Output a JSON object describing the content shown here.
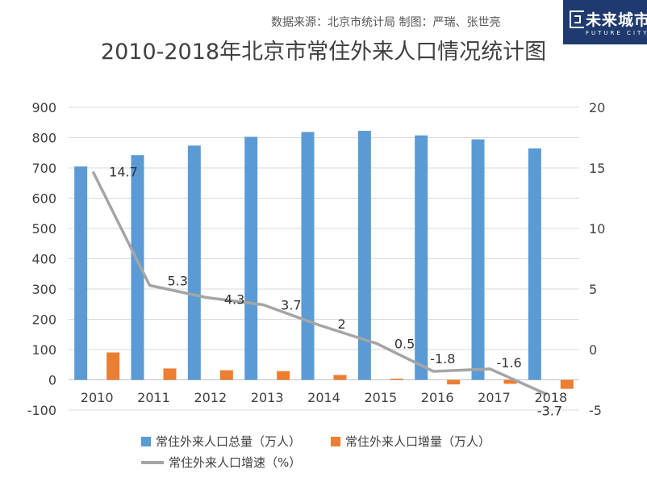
{
  "header": {
    "source_text": "数据来源：北京市统计局    制图：严瑞、张世亮",
    "title": "2010-2018年北京市常住外来人口情况统计图"
  },
  "logo": {
    "name": "未来城市",
    "english": "FUTURE CITY",
    "background": "#1f3a6e"
  },
  "chart_data": {
    "type": "bar",
    "title": "2010-2018年北京市常住外来人口情况统计图",
    "categories": [
      "2010",
      "2011",
      "2012",
      "2013",
      "2014",
      "2015",
      "2016",
      "2017",
      "2018"
    ],
    "series": [
      {
        "name": "常住外来人口总量（万人）",
        "type": "bar",
        "axis": "left",
        "color": "#5b9bd5",
        "values": [
          704.7,
          742.2,
          773.8,
          802.7,
          818.7,
          822.6,
          807.5,
          794.3,
          764.6
        ]
      },
      {
        "name": "常住外来人口增量（万人）",
        "type": "bar",
        "axis": "left",
        "color": "#ed7d31",
        "values": [
          90.5,
          37.5,
          31.6,
          28.9,
          16.0,
          3.9,
          -15.1,
          -13.2,
          -29.7
        ]
      },
      {
        "name": "常住外来人口增速（%）",
        "type": "line",
        "axis": "right",
        "color": "#a5a5a5",
        "values": [
          14.7,
          5.3,
          4.3,
          3.7,
          2,
          0.5,
          -1.8,
          -1.6,
          -3.7
        ],
        "labels": [
          "14.7",
          "5.3",
          "4.3",
          "3.7",
          "2",
          "0.5",
          "-1.8",
          "-1.6",
          "-3.7"
        ]
      }
    ],
    "y_left": {
      "min": -100,
      "max": 900,
      "step": 100
    },
    "y_right": {
      "min": -5,
      "max": 20,
      "step": 5
    },
    "grid": true,
    "legend_position": "bottom"
  }
}
